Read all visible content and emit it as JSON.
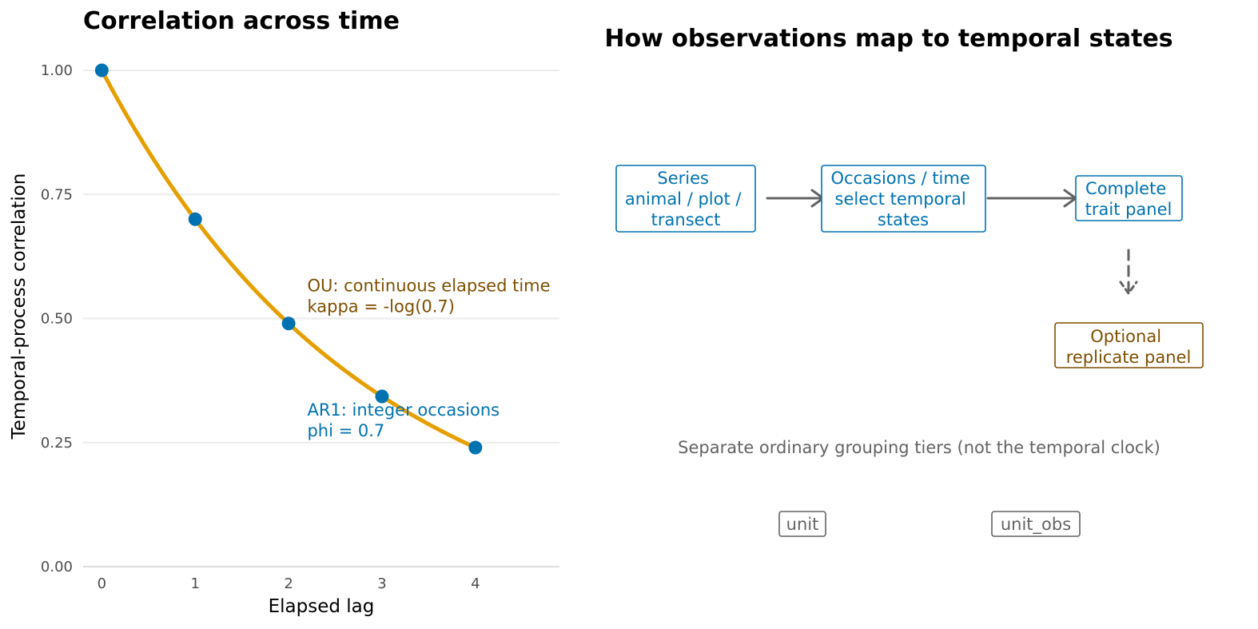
{
  "colors": {
    "curve": "#E69F00",
    "points": "#0072B2",
    "blue": "#0072B2",
    "brown": "#7F4F00",
    "gray": "#636363",
    "grid": "#EBEBEB"
  },
  "chart_data": [
    {
      "type": "line",
      "title": "Correlation across time",
      "xlabel": "Elapsed lag",
      "ylabel": "Temporal-process correlation",
      "xlim": [
        -0.2,
        4.9
      ],
      "ylim": [
        0,
        1
      ],
      "x_ticks": [
        0,
        1,
        2,
        3,
        4
      ],
      "y_ticks": [
        0,
        0.25,
        0.5,
        0.75,
        1
      ],
      "y_tick_labels": [
        "0.00",
        "0.25",
        "0.50",
        "0.75",
        "1.00"
      ],
      "grid": true,
      "series": [
        {
          "kind": "curve",
          "color": "#E69F00",
          "formula": "0.7^x",
          "x": [
            0,
            0.25,
            0.5,
            0.75,
            1,
            1.25,
            1.5,
            1.75,
            2,
            2.25,
            2.5,
            2.75,
            3,
            3.25,
            3.5,
            3.75,
            4
          ],
          "values": [
            1,
            0.915,
            0.837,
            0.765,
            0.7,
            0.64,
            0.586,
            0.535,
            0.49,
            0.448,
            0.41,
            0.375,
            0.343,
            0.314,
            0.287,
            0.263,
            0.24
          ]
        },
        {
          "kind": "points",
          "color": "#0072B2",
          "x": [
            0,
            1,
            2,
            3,
            4
          ],
          "values": [
            1,
            0.7,
            0.49,
            0.343,
            0.24
          ]
        }
      ],
      "annotations": [
        {
          "lines": [
            "OU: continuous elapsed time",
            "kappa = -log(0.7)"
          ],
          "x": 2.2,
          "y": 0.54,
          "color": "#7F4F00"
        },
        {
          "lines": [
            "AR1: integer occasions",
            "phi = 0.7"
          ],
          "x": 2.2,
          "y": 0.29,
          "color": "#0072B2"
        }
      ]
    }
  ],
  "diagram": {
    "title": "How observations map to temporal states",
    "nodes": [
      {
        "id": "series",
        "lines": [
          "Series",
          "animal / plot /",
          "transect"
        ],
        "color": "#0072B2"
      },
      {
        "id": "occasions",
        "lines": [
          "Occasions / time",
          "select temporal",
          "states"
        ],
        "color": "#0072B2"
      },
      {
        "id": "complete",
        "lines": [
          "Complete",
          "trait panel"
        ],
        "color": "#0072B2"
      },
      {
        "id": "optional",
        "lines": [
          "Optional",
          "replicate panel"
        ],
        "color": "#7F4F00"
      }
    ],
    "note": "Separate ordinary grouping tiers (not the temporal clock)",
    "tiers": [
      "unit",
      "unit_obs"
    ]
  }
}
